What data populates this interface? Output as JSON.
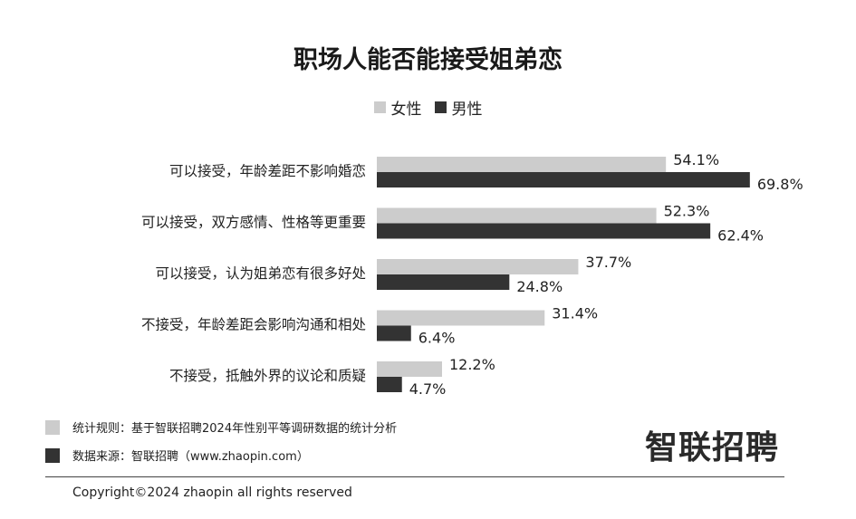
{
  "colors": {
    "female": "#cccccc",
    "male": "#333333"
  },
  "chart_data": {
    "type": "bar",
    "orientation": "horizontal",
    "title": "职场人能否能接受姐弟恋",
    "categories": [
      "可以接受，年龄差距不影响婚恋",
      "可以接受，双方感情、性格等更重要",
      "可以接受，认为姐弟恋有很多好处",
      "不接受，年龄差距会影响沟通和相处",
      "不接受，抵触外界的议论和质疑"
    ],
    "series": [
      {
        "name": "女性",
        "values": [
          54.1,
          52.3,
          37.7,
          31.4,
          12.2
        ],
        "labels": [
          "54.1%",
          "52.3%",
          "37.7%",
          "31.4%",
          "12.2%"
        ]
      },
      {
        "name": "男性",
        "values": [
          69.8,
          62.4,
          24.8,
          6.4,
          4.7
        ],
        "labels": [
          "69.8%",
          "62.4%",
          "24.8%",
          "6.4%",
          "4.7%"
        ]
      }
    ],
    "xlim": [
      0,
      100
    ],
    "legend": "top-center",
    "grid": false
  },
  "footer": {
    "rule_note": "统计规则：基于智联招聘2024年性别平等调研数据的统计分析",
    "source_note": "数据来源：智联招聘（www.zhaopin.com）",
    "logo_text": "智联招聘",
    "copyright": "Copyright©2024 zhaopin all rights reserved"
  }
}
